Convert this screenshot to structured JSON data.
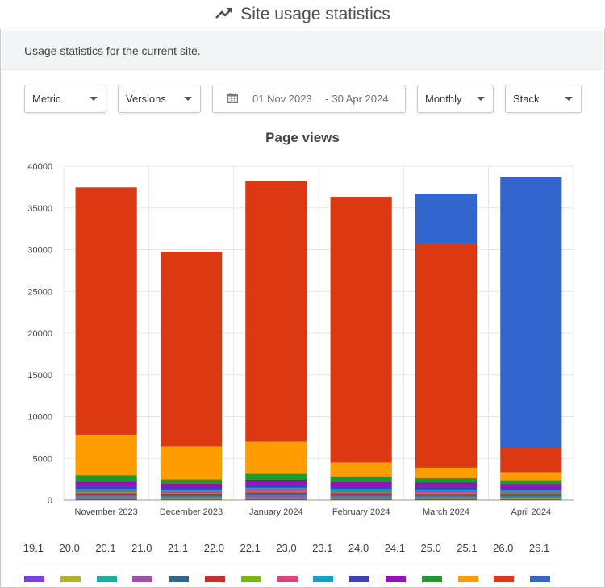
{
  "header": {
    "title": "Site usage statistics",
    "icon": "trending-up-icon"
  },
  "card": {
    "description": "Usage statistics for the current site."
  },
  "filters": {
    "metric": "Metric",
    "versions": "Versions",
    "date_from": "01 Nov 2023",
    "date_separator": "-",
    "date_to": "30 Apr 2024",
    "interval": "Monthly",
    "mode": "Stack"
  },
  "legend": {
    "versions": [
      "19.1",
      "20.0",
      "20.1",
      "21.0",
      "21.1",
      "22.0",
      "22.1",
      "23.0",
      "23.1",
      "24.0",
      "24.1",
      "25.0",
      "25.1",
      "26.0",
      "26.1"
    ]
  },
  "chart_data": {
    "type": "bar",
    "stacked": true,
    "title": "Page views",
    "categories": [
      "November 2023",
      "December 2023",
      "January 2024",
      "February 2024",
      "March 2024",
      "April 2024"
    ],
    "ylim": [
      0,
      40000
    ],
    "yticks": [
      0,
      5000,
      10000,
      15000,
      20000,
      25000,
      30000,
      35000,
      40000
    ],
    "grid": true,
    "legend_position": "bottom",
    "series": [
      {
        "name": "19.1",
        "color": "#7b3fe4",
        "values": [
          150,
          130,
          160,
          140,
          140,
          120
        ]
      },
      {
        "name": "20.0",
        "color": "#b5b32b",
        "values": [
          100,
          90,
          110,
          100,
          90,
          90
        ]
      },
      {
        "name": "20.1",
        "color": "#1fada0",
        "values": [
          150,
          130,
          170,
          150,
          140,
          130
        ]
      },
      {
        "name": "21.0",
        "color": "#a34fa9",
        "values": [
          150,
          140,
          160,
          150,
          140,
          130
        ]
      },
      {
        "name": "21.1",
        "color": "#2f6690",
        "values": [
          150,
          140,
          170,
          150,
          140,
          130
        ]
      },
      {
        "name": "22.0",
        "color": "#c62f2f",
        "values": [
          150,
          130,
          160,
          140,
          130,
          120
        ]
      },
      {
        "name": "22.1",
        "color": "#7cb518",
        "values": [
          100,
          90,
          110,
          100,
          100,
          90
        ]
      },
      {
        "name": "23.0",
        "color": "#e0407b",
        "values": [
          150,
          130,
          160,
          140,
          140,
          120
        ]
      },
      {
        "name": "23.1",
        "color": "#119fcc",
        "values": [
          250,
          220,
          280,
          250,
          240,
          220
        ]
      },
      {
        "name": "24.0",
        "color": "#3d41c4",
        "values": [
          350,
          300,
          380,
          330,
          320,
          300
        ]
      },
      {
        "name": "24.1",
        "color": "#9b0fb8",
        "values": [
          550,
          450,
          560,
          520,
          500,
          450
        ]
      },
      {
        "name": "25.0",
        "color": "#1b9a2e",
        "values": [
          700,
          500,
          700,
          650,
          520,
          450
        ]
      },
      {
        "name": "25.1",
        "color": "#ff9c00",
        "values": [
          4900,
          4000,
          3900,
          1700,
          1300,
          1000
        ]
      },
      {
        "name": "26.0",
        "color": "#dc3912",
        "values": [
          29600,
          23300,
          31200,
          31800,
          26800,
          2900
        ]
      },
      {
        "name": "26.1",
        "color": "#3366cc",
        "values": [
          0,
          0,
          0,
          0,
          6000,
          32400
        ]
      }
    ]
  }
}
